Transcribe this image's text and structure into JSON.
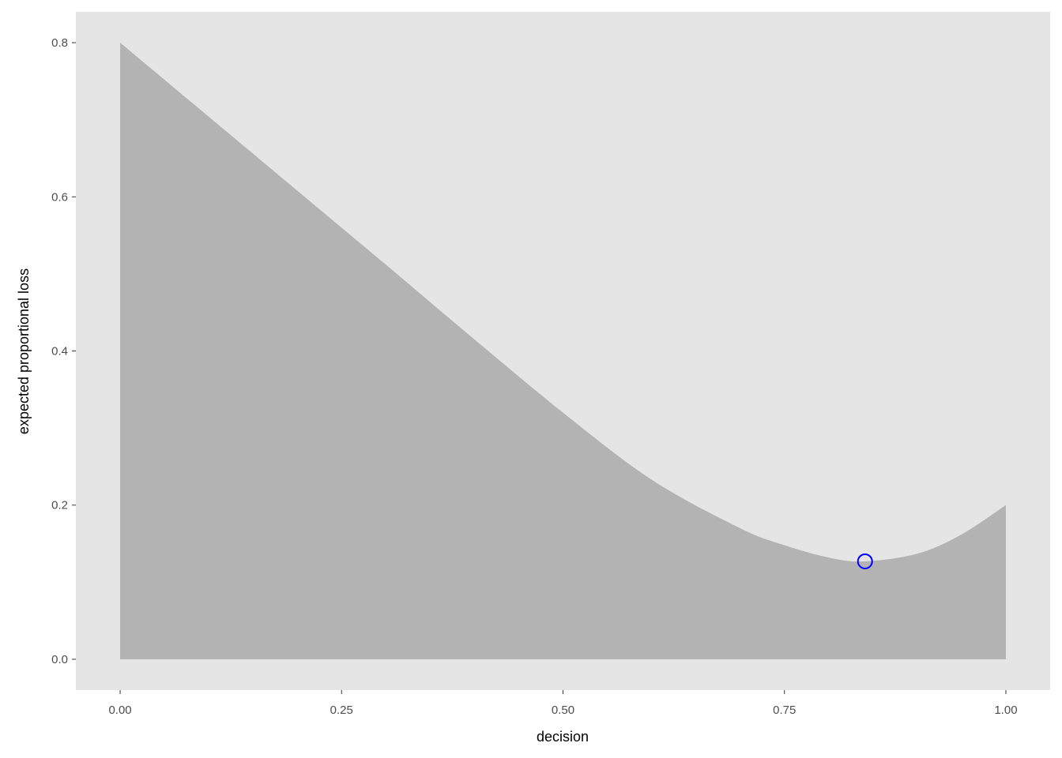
{
  "chart_data": {
    "type": "area",
    "title": "",
    "xlabel": "decision",
    "ylabel": "expected proportional loss",
    "xlim": [
      -0.05,
      1.05
    ],
    "ylim": [
      -0.04,
      0.84
    ],
    "x_ticks": [
      "0.00",
      "0.25",
      "0.50",
      "0.75",
      "1.00"
    ],
    "y_ticks": [
      "0.0",
      "0.2",
      "0.4",
      "0.6",
      "0.8"
    ],
    "grid": false,
    "fill_color": "#b3b3b3",
    "panel_color": "#e5e5e5",
    "x": [
      0,
      0.1,
      0.2,
      0.25,
      0.3,
      0.4,
      0.5,
      0.6,
      0.7,
      0.75,
      0.8,
      0.84,
      0.9,
      0.95,
      1.0
    ],
    "y": [
      0.8,
      0.704,
      0.608,
      0.56,
      0.512,
      0.415,
      0.32,
      0.233,
      0.17,
      0.148,
      0.132,
      0.127,
      0.137,
      0.162,
      0.2
    ],
    "highlight_point": {
      "x": 0.841,
      "y": 0.127,
      "color": "#0000ff"
    }
  }
}
